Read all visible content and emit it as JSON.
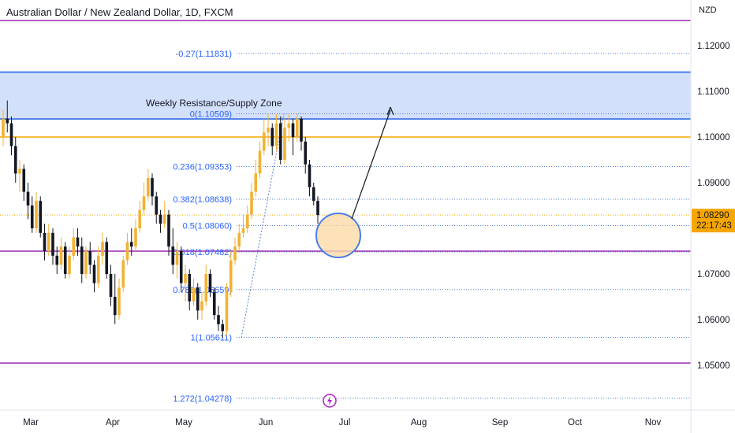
{
  "header": {
    "title": "Australian Dollar / New Zealand Dollar, 1D, FXCM"
  },
  "chart_data": {
    "type": "candlestick",
    "currency_unit": "NZD",
    "y_ticks": [
      "1.12000",
      "1.11000",
      "1.10000",
      "1.09000",
      "1.08000",
      "1.07000",
      "1.06000",
      "1.05000"
    ],
    "y_tick_values": [
      1.12,
      1.11,
      1.1,
      1.09,
      1.08,
      1.07,
      1.06,
      1.05
    ],
    "ylim": [
      1.0405,
      1.1295
    ],
    "x_ticks": [
      "Mar",
      "Apr",
      "May",
      "Jun",
      "Jul",
      "Aug",
      "Sep",
      "Oct",
      "Nov"
    ],
    "last_price": {
      "value": 1.0829,
      "label": "1.08290",
      "countdown": "22:17:43"
    },
    "zone": {
      "label": "Weekly Resistance/Supply Zone",
      "top": 1.1142,
      "bottom": 1.10395
    },
    "fib_levels": [
      {
        "label": "-0.27(1.11831)",
        "value": 1.11831
      },
      {
        "label": "0(1.10509)",
        "value": 1.10509
      },
      {
        "label": "0.236(1.09353)",
        "value": 1.09353
      },
      {
        "label": "0.382(1.08638)",
        "value": 1.08638
      },
      {
        "label": "0.5(1.08060)",
        "value": 1.0806
      },
      {
        "label": "0.618(1.07482)",
        "value": 1.07482
      },
      {
        "label": "0.786(1.06659)",
        "value": 1.06659
      },
      {
        "label": "1(1.05611)",
        "value": 1.05611
      },
      {
        "label": "1.272(1.04278)",
        "value": 1.04278
      }
    ],
    "horizontal_lines": [
      {
        "value": 1.1255,
        "color": "#9c27b0"
      },
      {
        "value": 1.1,
        "color": "#f7a600"
      },
      {
        "value": 1.075,
        "color": "#9c27b0"
      },
      {
        "value": 1.0505,
        "color": "#9c27b0"
      }
    ],
    "candles": [
      [
        1.1,
        1.106,
        1.098,
        1.104
      ],
      [
        1.104,
        1.108,
        1.101,
        1.103
      ],
      [
        1.103,
        1.1045,
        1.096,
        1.098
      ],
      [
        1.098,
        1.1,
        1.09,
        1.092
      ],
      [
        1.092,
        1.095,
        1.088,
        1.093
      ],
      [
        1.093,
        1.094,
        1.086,
        1.088
      ],
      [
        1.088,
        1.09,
        1.082,
        1.085
      ],
      [
        1.085,
        1.087,
        1.079,
        1.08
      ],
      [
        1.08,
        1.088,
        1.079,
        1.086
      ],
      [
        1.086,
        1.087,
        1.078,
        1.079
      ],
      [
        1.079,
        1.081,
        1.073,
        1.075
      ],
      [
        1.075,
        1.081,
        1.074,
        1.079
      ],
      [
        1.079,
        1.08,
        1.072,
        1.074
      ],
      [
        1.074,
        1.076,
        1.07,
        1.072
      ],
      [
        1.072,
        1.078,
        1.071,
        1.076
      ],
      [
        1.076,
        1.077,
        1.069,
        1.07
      ],
      [
        1.07,
        1.076,
        1.069,
        1.074
      ],
      [
        1.074,
        1.08,
        1.073,
        1.078
      ],
      [
        1.078,
        1.08,
        1.074,
        1.076
      ],
      [
        1.076,
        1.078,
        1.068,
        1.07
      ],
      [
        1.07,
        1.076,
        1.069,
        1.075
      ],
      [
        1.075,
        1.077,
        1.07,
        1.072
      ],
      [
        1.072,
        1.073,
        1.066,
        1.068
      ],
      [
        1.068,
        1.076,
        1.067,
        1.074
      ],
      [
        1.074,
        1.079,
        1.072,
        1.077
      ],
      [
        1.077,
        1.078,
        1.069,
        1.07
      ],
      [
        1.07,
        1.072,
        1.063,
        1.065
      ],
      [
        1.065,
        1.07,
        1.059,
        1.061
      ],
      [
        1.061,
        1.069,
        1.06,
        1.067
      ],
      [
        1.067,
        1.074,
        1.066,
        1.073
      ],
      [
        1.073,
        1.079,
        1.072,
        1.077
      ],
      [
        1.077,
        1.08,
        1.074,
        1.076
      ],
      [
        1.076,
        1.082,
        1.075,
        1.08
      ],
      [
        1.08,
        1.086,
        1.079,
        1.084
      ],
      [
        1.084,
        1.09,
        1.083,
        1.087
      ],
      [
        1.087,
        1.093,
        1.086,
        1.091
      ],
      [
        1.091,
        1.092,
        1.085,
        1.087
      ],
      [
        1.087,
        1.088,
        1.081,
        1.083
      ],
      [
        1.083,
        1.084,
        1.079,
        1.081
      ],
      [
        1.081,
        1.086,
        1.08,
        1.083
      ],
      [
        1.083,
        1.084,
        1.074,
        1.076
      ],
      [
        1.076,
        1.08,
        1.07,
        1.072
      ],
      [
        1.072,
        1.077,
        1.069,
        1.075
      ],
      [
        1.075,
        1.076,
        1.066,
        1.068
      ],
      [
        1.068,
        1.072,
        1.064,
        1.07
      ],
      [
        1.07,
        1.071,
        1.062,
        1.064
      ],
      [
        1.064,
        1.069,
        1.063,
        1.067
      ],
      [
        1.067,
        1.068,
        1.06,
        1.062
      ],
      [
        1.062,
        1.066,
        1.06,
        1.064
      ],
      [
        1.064,
        1.072,
        1.063,
        1.07
      ],
      [
        1.07,
        1.071,
        1.065,
        1.066
      ],
      [
        1.066,
        1.067,
        1.06,
        1.061
      ],
      [
        1.061,
        1.063,
        1.0575,
        1.059
      ],
      [
        1.059,
        1.06,
        1.056,
        1.0575
      ],
      [
        1.0575,
        1.068,
        1.0565,
        1.066
      ],
      [
        1.066,
        1.075,
        1.065,
        1.073
      ],
      [
        1.073,
        1.078,
        1.072,
        1.076
      ],
      [
        1.076,
        1.081,
        1.075,
        1.079
      ],
      [
        1.079,
        1.083,
        1.078,
        1.08
      ],
      [
        1.08,
        1.085,
        1.079,
        1.083
      ],
      [
        1.083,
        1.09,
        1.082,
        1.088
      ],
      [
        1.088,
        1.095,
        1.087,
        1.092
      ],
      [
        1.092,
        1.099,
        1.091,
        1.097
      ],
      [
        1.097,
        1.104,
        1.096,
        1.101
      ],
      [
        1.101,
        1.105,
        1.098,
        1.102
      ],
      [
        1.102,
        1.103,
        1.096,
        1.098
      ],
      [
        1.098,
        1.105,
        1.097,
        1.103
      ],
      [
        1.103,
        1.1045,
        1.094,
        1.095
      ],
      [
        1.095,
        1.104,
        1.094,
        1.102
      ],
      [
        1.102,
        1.105,
        1.099,
        1.103
      ],
      [
        1.103,
        1.104,
        1.096,
        1.1
      ],
      [
        1.1,
        1.1051,
        1.099,
        1.104
      ],
      [
        1.104,
        1.1045,
        1.097,
        1.099
      ],
      [
        1.099,
        1.1,
        1.092,
        1.094
      ],
      [
        1.094,
        1.095,
        1.087,
        1.089
      ],
      [
        1.089,
        1.09,
        1.085,
        1.086
      ],
      [
        1.086,
        1.087,
        1.081,
        1.0829
      ]
    ]
  }
}
